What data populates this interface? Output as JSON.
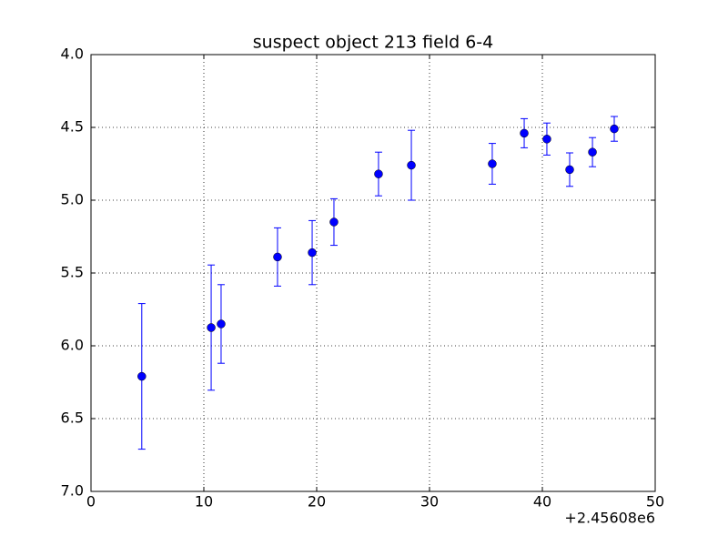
{
  "chart_data": {
    "type": "errorbar",
    "title": "suspect object 213 field 6-4",
    "x_offset_label": "+2.45608e6",
    "series": [
      {
        "color": "#0000ff",
        "x": [
          4.5,
          10.65,
          11.53,
          16.53,
          19.6,
          21.53,
          25.48,
          28.39,
          35.56,
          38.39,
          40.4,
          42.42,
          44.44,
          46.37
        ],
        "values": [
          6.21,
          5.875,
          5.85,
          5.39,
          5.36,
          5.15,
          4.82,
          4.76,
          4.75,
          4.54,
          4.58,
          4.79,
          4.67,
          4.51
        ],
        "errors": [
          0.5,
          0.43,
          0.27,
          0.2,
          0.22,
          0.16,
          0.15,
          0.24,
          0.14,
          0.1,
          0.11,
          0.115,
          0.1,
          0.085
        ]
      }
    ],
    "xlim": [
      0,
      50
    ],
    "xticks": [
      0,
      10,
      20,
      30,
      40,
      50
    ],
    "ylim": [
      7.0,
      4.0
    ],
    "yticks": [
      {
        "value": 4,
        "label": "4.0"
      },
      4.5,
      {
        "value": 5,
        "label": "5.0"
      },
      5.5,
      {
        "value": 6,
        "label": "6.0"
      },
      6.5,
      {
        "value": 7,
        "label": "7.0"
      }
    ],
    "grid": true
  }
}
